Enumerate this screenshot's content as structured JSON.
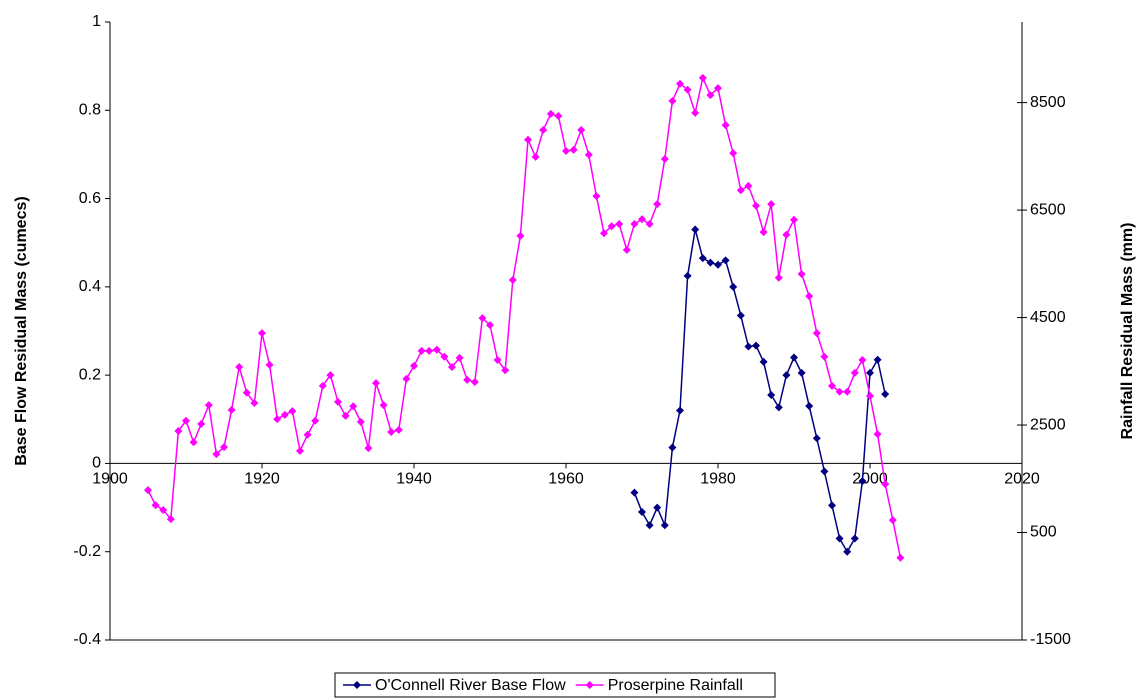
{
  "chart_data": {
    "type": "line",
    "y_label": "Base Flow Residual Mass (cumecs)",
    "y2_label": "Rainfall Residual Mass (mm)",
    "xlim": [
      1900,
      2020
    ],
    "xticks": [
      1900,
      1920,
      1940,
      1960,
      1980,
      2000,
      2020
    ],
    "ylim": [
      -0.4,
      1
    ],
    "yticks": [
      -0.4,
      -0.2,
      0,
      0.2,
      0.4,
      0.6,
      0.8,
      1
    ],
    "y2lim": [
      -1500,
      10000
    ],
    "y2ticks": [
      -1500,
      500,
      2500,
      4500,
      6500,
      8500
    ],
    "legend": "bottom",
    "series": [
      {
        "name": "O'Connell River Base Flow",
        "color": "#000080",
        "x": [
          1969,
          1970,
          1971,
          1972,
          1973,
          1974,
          1975,
          1976,
          1977,
          1978,
          1979,
          1980,
          1981,
          1982,
          1983,
          1984,
          1985,
          1986,
          1987,
          1988,
          1989,
          1990,
          1991,
          1992,
          1993,
          1994,
          1995,
          1996,
          1997,
          1998,
          1999,
          2000,
          2001,
          2002
        ],
        "values": [
          -0.066,
          -0.11,
          -0.14,
          -0.1,
          -0.14,
          0.036,
          0.12,
          0.425,
          0.53,
          0.465,
          0.455,
          0.45,
          0.46,
          0.4,
          0.335,
          0.265,
          0.267,
          0.23,
          0.155,
          0.127,
          0.2,
          0.24,
          0.205,
          0.13,
          0.057,
          -0.018,
          -0.095,
          -0.17,
          -0.2,
          -0.17,
          -0.04,
          0.205,
          0.235,
          0.157
        ]
      },
      {
        "name": "Proserpine Rainfall",
        "color": "#ff00ff",
        "axis": "y2",
        "x": [
          1905,
          1906,
          1907,
          1908,
          1909,
          1910,
          1911,
          1912,
          1913,
          1914,
          1915,
          1916,
          1917,
          1918,
          1919,
          1920,
          1921,
          1922,
          1923,
          1924,
          1925,
          1926,
          1927,
          1928,
          1929,
          1930,
          1931,
          1932,
          1933,
          1934,
          1935,
          1936,
          1937,
          1938,
          1939,
          1940,
          1941,
          1942,
          1943,
          1944,
          1945,
          1946,
          1947,
          1948,
          1949,
          1950,
          1951,
          1952,
          1953,
          1954,
          1955,
          1956,
          1957,
          1958,
          1959,
          1960,
          1961,
          1962,
          1963,
          1964,
          1965,
          1966,
          1967,
          1968,
          1969,
          1970,
          1971,
          1972,
          1973,
          1974,
          1975,
          1976,
          1977,
          1978,
          1979,
          1980,
          1981,
          1982,
          1983,
          1984,
          1985,
          1986,
          1987,
          1988,
          1989,
          1990,
          1991,
          1992,
          1993,
          1994,
          1995,
          1996,
          1997,
          1998,
          1999,
          2000,
          2001,
          2002,
          2003,
          2004
        ],
        "values": [
          1290,
          1010,
          920,
          750,
          2390,
          2580,
          2180,
          2520,
          2870,
          1960,
          2090,
          2780,
          3580,
          3100,
          2910,
          4210,
          3620,
          2610,
          2690,
          2760,
          2020,
          2320,
          2580,
          3230,
          3430,
          2930,
          2670,
          2850,
          2560,
          2070,
          3280,
          2870,
          2370,
          2410,
          3360,
          3600,
          3880,
          3880,
          3900,
          3770,
          3580,
          3750,
          3340,
          3300,
          4490,
          4360,
          3710,
          3520,
          5200,
          6020,
          7810,
          7490,
          7990,
          8290,
          8250,
          7600,
          7620,
          7990,
          7530,
          6760,
          6070,
          6200,
          6240,
          5760,
          6240,
          6330,
          6240,
          6610,
          7450,
          8530,
          8850,
          8740,
          8310,
          8960,
          8640,
          8770,
          8080,
          7560,
          6870,
          6950,
          6580,
          6090,
          6610,
          5240,
          6040,
          6320,
          5310,
          4900,
          4210,
          3770,
          3230,
          3120,
          3120,
          3470,
          3710,
          3040,
          2330,
          1400,
          730,
          30
        ]
      }
    ]
  }
}
